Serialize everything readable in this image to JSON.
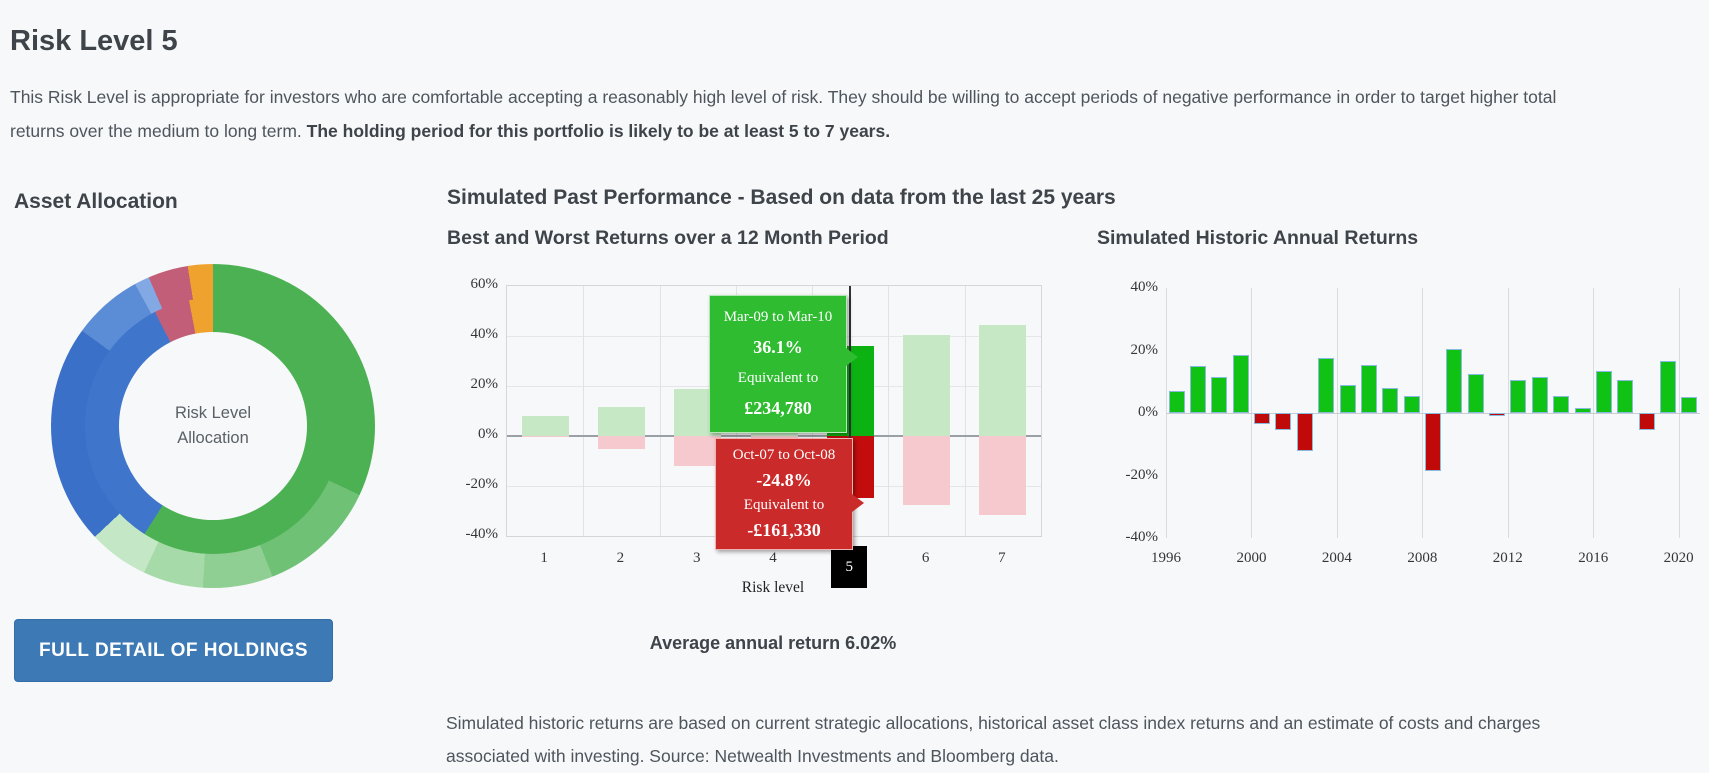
{
  "texts": {
    "page_title": "Risk Level 5",
    "intro_normal": "This Risk Level is appropriate for investors who are comfortable accepting a reasonably high level of risk. They should be willing to accept periods of negative performance in order to target higher total returns over the medium to long term. ",
    "intro_bold": "The holding period for this portfolio is likely to be at least 5 to 7 years.",
    "asset_allocation_title": "Asset Allocation",
    "performance_title": "Simulated Past Performance - Based on data from the last 25 years",
    "average_return": "Average annual return 6.02%",
    "holdings_button": "FULL DETAIL OF HOLDINGS",
    "footnote": "Simulated historic returns are based on current strategic allocations, historical asset class index returns and an estimate of costs and charges associated with investing. Source: Netwealth Investments and Bloomberg data."
  },
  "donut": {
    "center_label_line1": "Risk Level",
    "center_label_line2": "Allocation",
    "outer_segments": [
      {
        "value": 32,
        "color": "#4cb153"
      },
      {
        "value": 12,
        "color": "#6fc275"
      },
      {
        "value": 7,
        "color": "#90cf94"
      },
      {
        "value": 6,
        "color": "#a6dba9"
      },
      {
        "value": 6,
        "color": "#c4e8c6"
      },
      {
        "value": 22,
        "color": "#3a70c8"
      },
      {
        "value": 7,
        "color": "#5b8cd6"
      },
      {
        "value": 1.5,
        "color": "#82a9e3"
      },
      {
        "value": 4,
        "color": "#c25e78"
      },
      {
        "value": 2.5,
        "color": "#f0a22e"
      }
    ],
    "inner_segments": [
      {
        "value": 59,
        "color": "#4cb153"
      },
      {
        "value": 33.5,
        "color": "#3f76cb"
      },
      {
        "value": 4.5,
        "color": "#c25e78"
      },
      {
        "value": 3,
        "color": "#f0a22e"
      }
    ]
  },
  "chart_data": [
    {
      "type": "bar",
      "title": "Best and Worst Returns over a 12 Month Period",
      "xlabel": "Risk level",
      "ylim": [
        -40,
        60
      ],
      "yticks": [
        "60%",
        "40%",
        "20%",
        "0%",
        "-20%",
        "-40%"
      ],
      "categories": [
        "1",
        "2",
        "3",
        "4",
        "5",
        "6",
        "7"
      ],
      "selected_category": "5",
      "series": [
        {
          "name": "best",
          "values": [
            8,
            11.5,
            19,
            28,
            36.1,
            40.5,
            44.5
          ]
        },
        {
          "name": "worst",
          "values": [
            -0.5,
            -5,
            -12,
            -18,
            -24.8,
            -27.5,
            -31.5
          ]
        }
      ],
      "tooltip_best": {
        "period": "Mar-09 to Mar-10",
        "value": "36.1%",
        "equiv_label": "Equivalent to",
        "equiv_value": "£234,780"
      },
      "tooltip_worst": {
        "period": "Oct-07 to Oct-08",
        "value": "-24.8%",
        "equiv_label": "Equivalent to",
        "equiv_value": "-£161,330"
      }
    },
    {
      "type": "bar",
      "title": "Simulated Historic Annual Returns",
      "ylim": [
        -40,
        40
      ],
      "yticks": [
        "40%",
        "20%",
        "0%",
        "-20%",
        "-40%"
      ],
      "x": [
        1996,
        1997,
        1998,
        1999,
        2000,
        2001,
        2002,
        2003,
        2004,
        2005,
        2006,
        2007,
        2008,
        2009,
        2010,
        2011,
        2012,
        2013,
        2014,
        2015,
        2016,
        2017,
        2018,
        2019,
        2020
      ],
      "values": [
        7,
        15,
        11.5,
        18.5,
        -3.5,
        -5.5,
        -12,
        17.5,
        9,
        15.5,
        8,
        5.5,
        -18.5,
        20.5,
        12.5,
        -1,
        10.5,
        11.5,
        5.5,
        1.5,
        13.5,
        10.5,
        -5.5,
        16.5,
        5
      ],
      "xticks": [
        1996,
        2000,
        2004,
        2008,
        2012,
        2016,
        2020
      ]
    }
  ],
  "colors": {
    "pale_green": "#c6e8c5",
    "pale_pink": "#f5c9cd",
    "vivid_green": "#0cb212",
    "vivid_red": "#c30d0d",
    "hist_green": "#0fc213",
    "hist_red": "#c00909",
    "hist_bar_border": "#8abade",
    "button_blue": "#3c79b5"
  }
}
